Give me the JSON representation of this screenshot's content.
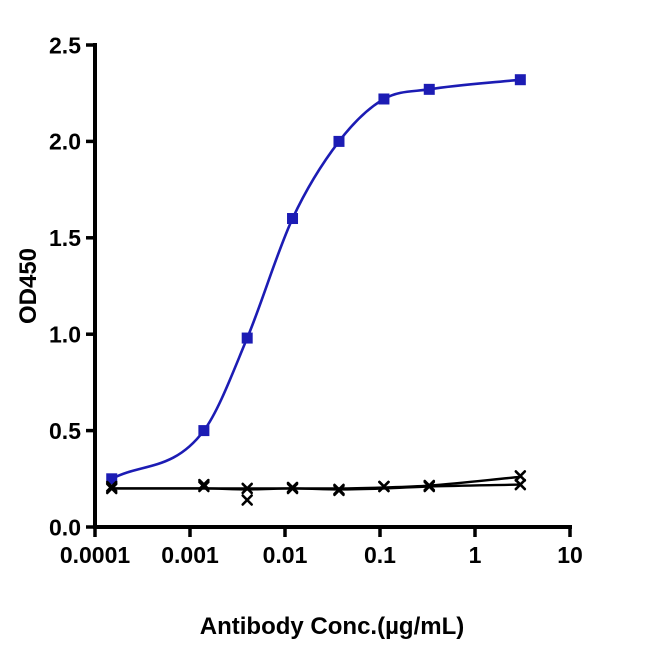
{
  "figure": {
    "background": "#ffffff",
    "axis_color": "#000000"
  },
  "chart_data": {
    "type": "line",
    "title": "",
    "xlabel": "Antibody Conc.(µg/mL)",
    "ylabel": "OD450",
    "x_scale": "log",
    "xlim": [
      0.0001,
      10
    ],
    "ylim": [
      0,
      2.5
    ],
    "x_ticks": [
      0.0001,
      0.001,
      0.01,
      0.1,
      1,
      10
    ],
    "x_tick_labels": [
      "0.0001",
      "0.001",
      "0.01",
      "0.1",
      "1",
      "10"
    ],
    "y_ticks": [
      0,
      0.5,
      1.0,
      1.5,
      2.0,
      2.5
    ],
    "y_tick_labels": [
      "0.0",
      "0.5",
      "1.0",
      "1.5",
      "2.0",
      "2.5"
    ],
    "grid": false,
    "legend": "none",
    "series": [
      {
        "name": "blue-squares",
        "color": "#1c1cb4",
        "marker": "square",
        "marker_size": 11,
        "line_width": 2.6,
        "points": {
          "x": [
            0.00015,
            0.0014,
            0.004,
            0.012,
            0.037,
            0.11,
            0.33,
            3
          ],
          "y": [
            0.25,
            0.5,
            0.98,
            1.6,
            2.0,
            2.22,
            2.27,
            2.32
          ]
        },
        "curve": {
          "x": [
            0.00015,
            0.0014,
            0.004,
            0.012,
            0.037,
            0.11,
            0.33,
            3
          ],
          "y": [
            0.25,
            0.5,
            0.98,
            1.6,
            2.0,
            2.22,
            2.27,
            2.32
          ]
        }
      },
      {
        "name": "black-x-a",
        "color": "#000000",
        "marker": "x",
        "marker_size": 11,
        "line_width": 2.4,
        "points": {
          "x": [
            0.00015,
            0.0014,
            0.004,
            0.012,
            0.037,
            0.11,
            0.33,
            3
          ],
          "y": [
            0.2,
            0.22,
            0.2,
            0.2,
            0.195,
            0.21,
            0.215,
            0.265
          ]
        },
        "curve": {
          "x": [
            0.00015,
            0.0014,
            0.004,
            0.012,
            0.037,
            0.11,
            0.33,
            3
          ],
          "y": [
            0.2,
            0.2,
            0.2,
            0.2,
            0.2,
            0.205,
            0.215,
            0.26
          ]
        }
      },
      {
        "name": "black-x-b",
        "color": "#000000",
        "marker": "x",
        "marker_size": 11,
        "line_width": 2.4,
        "points": {
          "x": [
            0.00015,
            0.0014,
            0.004,
            0.012,
            0.037,
            0.11,
            0.33,
            3
          ],
          "y": [
            0.21,
            0.21,
            0.14,
            0.205,
            0.19,
            0.21,
            0.21,
            0.22
          ]
        },
        "curve": {
          "x": [
            0.00015,
            0.0014,
            0.004,
            0.012,
            0.037,
            0.11,
            0.33,
            3
          ],
          "y": [
            0.2,
            0.2,
            0.195,
            0.2,
            0.195,
            0.2,
            0.21,
            0.22
          ]
        }
      }
    ]
  }
}
